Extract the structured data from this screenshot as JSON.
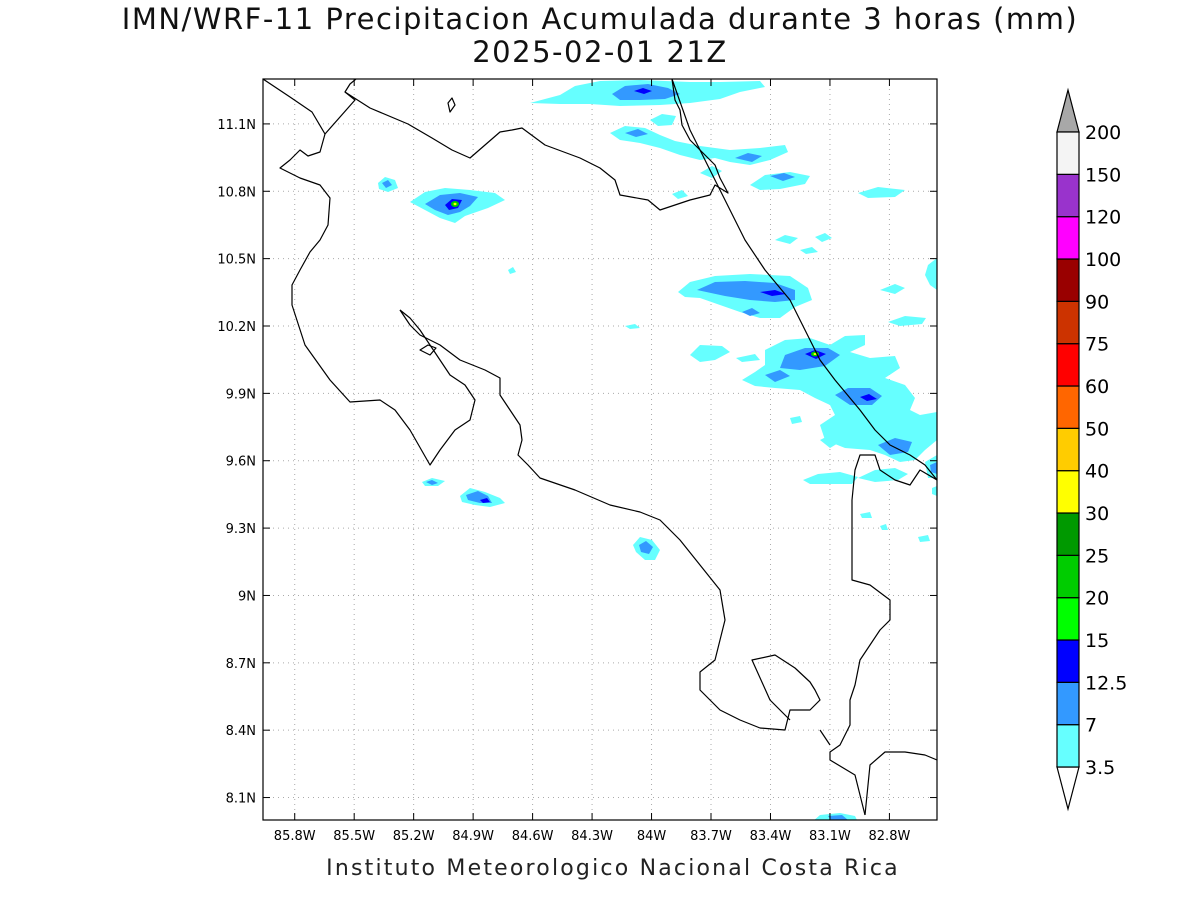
{
  "title_line1": "IMN/WRF-11 Precipitacion Acumulada durante 3 horas (mm)",
  "title_line2": "2025-02-01 21Z",
  "footer": "Instituto Meteorologico Nacional Costa Rica",
  "map": {
    "lon_range": [
      -85.96,
      -82.56
    ],
    "lat_range": [
      8.0,
      11.3
    ],
    "lat_ticks": [
      "8.1N",
      "8.4N",
      "8.7N",
      "9N",
      "9.3N",
      "9.6N",
      "9.9N",
      "10.2N",
      "10.5N",
      "10.8N",
      "11.1N"
    ],
    "lon_ticks": [
      "85.8W",
      "85.5W",
      "85.2W",
      "84.9W",
      "84.6W",
      "84.3W",
      "84W",
      "83.7W",
      "83.4W",
      "83.1W",
      "82.8W"
    ],
    "grid": "dotted"
  },
  "colorbar": {
    "levels": [
      "3.5",
      "7",
      "12.5",
      "15",
      "20",
      "25",
      "30",
      "40",
      "50",
      "60",
      "75",
      "90",
      "100",
      "120",
      "150",
      "200"
    ],
    "colors": [
      "#ffffff",
      "#66ffff",
      "#3399ff",
      "#0000ff",
      "#00ff00",
      "#00cc00",
      "#009900",
      "#ffff00",
      "#ffcc00",
      "#ff6600",
      "#ff0000",
      "#cc3300",
      "#990000",
      "#ff00ff",
      "#9933cc",
      "#f4f4f4"
    ],
    "top_triangle_color": "#a8a8a8"
  }
}
